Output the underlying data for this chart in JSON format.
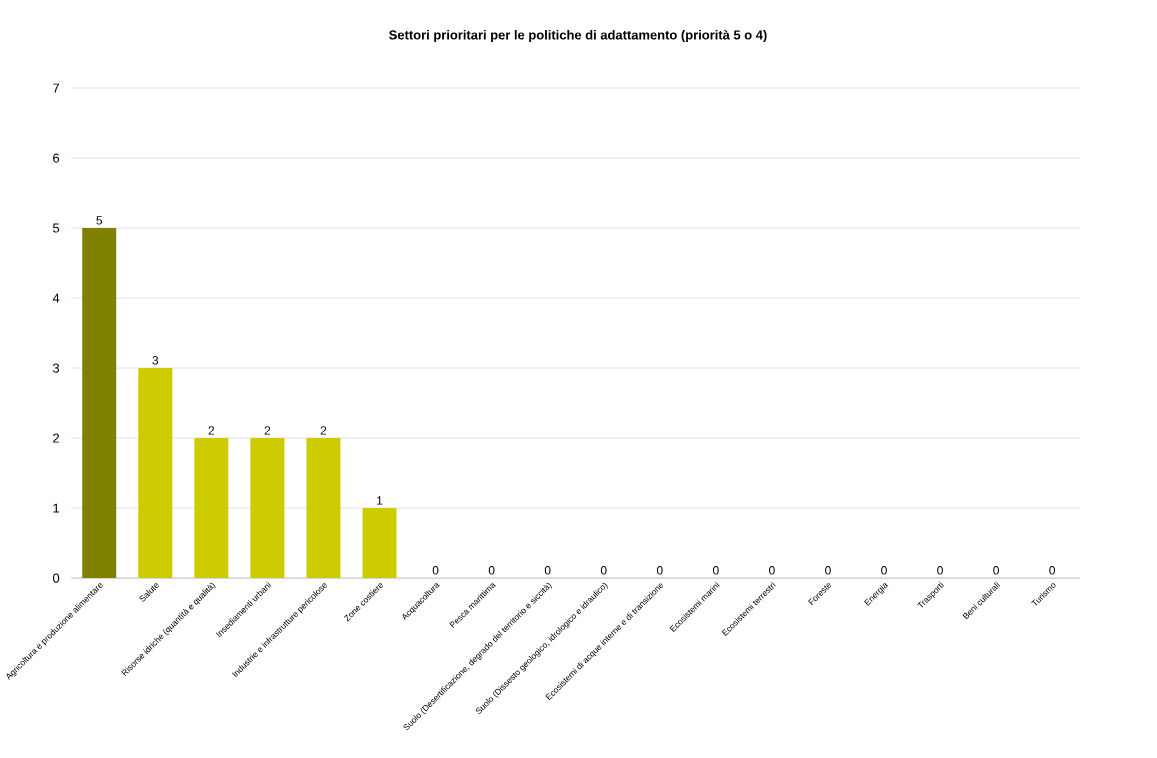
{
  "chart_data": {
    "type": "bar",
    "title": "Settori prioritari per le politiche di adattamento (priorità 5 o 4)",
    "categories": [
      "Agricoltura e produzione alimentare",
      "Salute",
      "Risorse idriche (quantità e qualità)",
      "Insediamenti urbani",
      "Industrie e infrastrutture pericolose",
      "Zone costiere",
      "Acquacoltura",
      "Pesca marittima",
      "Suolo (Desertificazione, degrado del territorio e siccità)",
      "Suolo (Dissesto geologico, idrologico e idraulico)",
      "Ecosistemi di acque interne e di transizione",
      "Ecosistemi marini",
      "Ecosistemi terrestri",
      "Foreste",
      "Energia",
      "Trasporti",
      "Beni culturali",
      "Turismo"
    ],
    "values": [
      5,
      3,
      2,
      2,
      2,
      1,
      0,
      0,
      0,
      0,
      0,
      0,
      0,
      0,
      0,
      0,
      0,
      0
    ],
    "colors": [
      "#808000",
      "#cccc00",
      "#cccc00",
      "#cccc00",
      "#cccc00",
      "#cccc00",
      "#cccc00",
      "#cccc00",
      "#cccc00",
      "#cccc00",
      "#cccc00",
      "#cccc00",
      "#cccc00",
      "#cccc00",
      "#cccc00",
      "#cccc00",
      "#cccc00",
      "#cccc00"
    ],
    "ylim": [
      0,
      7
    ],
    "yticks": [
      0,
      1,
      2,
      3,
      4,
      5,
      6,
      7
    ],
    "grid": "y",
    "data_labels": true
  }
}
